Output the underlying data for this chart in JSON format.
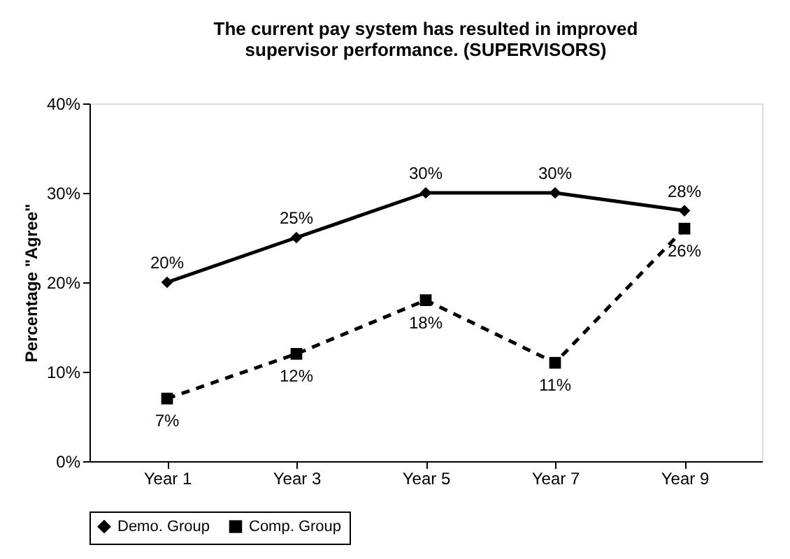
{
  "chart_data": {
    "type": "line",
    "title": "The current pay system has resulted in improved supervisor performance. (SUPERVISORS)",
    "ylabel": "Percentage \"Agree\"",
    "categories": [
      "Year 1",
      "Year 3",
      "Year 5",
      "Year 7",
      "Year 9"
    ],
    "series": [
      {
        "name": "Demo. Group",
        "color": "#000000",
        "marker": "diamond",
        "line_style": "solid",
        "values": [
          20,
          25,
          30,
          30,
          28
        ],
        "value_labels": [
          "20%",
          "25%",
          "30%",
          "30%",
          "28%"
        ]
      },
      {
        "name": "Comp. Group",
        "color": "#000000",
        "marker": "square",
        "line_style": "dashed",
        "values": [
          7,
          12,
          18,
          11,
          26
        ],
        "value_labels": [
          "7%",
          "12%",
          "18%",
          "11%",
          "26%"
        ]
      }
    ],
    "ylim": [
      0,
      40
    ],
    "yticks": [
      {
        "value": 0,
        "label": "0%"
      },
      {
        "value": 10,
        "label": "10%"
      },
      {
        "value": 20,
        "label": "20%"
      },
      {
        "value": 30,
        "label": "30%"
      },
      {
        "value": 40,
        "label": "40%"
      }
    ],
    "grid": false,
    "legend": "bottom"
  }
}
